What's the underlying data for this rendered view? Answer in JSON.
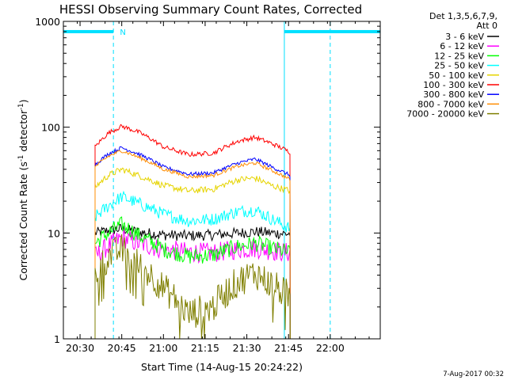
{
  "chart_data": {
    "type": "line",
    "title": "HESSI Observing Summary Count Rates, Corrected",
    "xlabel": "Start Time (14-Aug-15 20:24:22)",
    "ylabel_prefix": "Corrected Count Rate (s",
    "ylabel_sup1": "-1",
    "ylabel_mid": " detector",
    "ylabel_sup2": "-1",
    "ylabel_suffix": ")",
    "y_scale": "log",
    "ylim": [
      1,
      1000
    ],
    "xlim_minutes": [
      20.4,
      22.3
    ],
    "x_ticks": [
      {
        "label": "20:30",
        "t": 20.5
      },
      {
        "label": "20:45",
        "t": 20.75
      },
      {
        "label": "21:00",
        "t": 21.0
      },
      {
        "label": "21:15",
        "t": 21.25
      },
      {
        "label": "21:30",
        "t": 21.5
      },
      {
        "label": "21:45",
        "t": 21.75
      },
      {
        "label": "22:00",
        "t": 22.0
      }
    ],
    "y_ticks": [
      {
        "label": "1",
        "v": 1
      },
      {
        "label": "10",
        "v": 10
      },
      {
        "label": "100",
        "v": 100
      },
      {
        "label": "1000",
        "v": 1000
      }
    ],
    "legend_header": [
      "Det 1,3,5,6,7,9,",
      "Att 0"
    ],
    "data_window": [
      20.59,
      21.76
    ],
    "series": [
      {
        "name": "3 - 6 keV",
        "color": "#000000",
        "x": [
          20.59,
          20.67,
          20.75,
          20.85,
          21.0,
          21.15,
          21.3,
          21.45,
          21.55,
          21.65,
          21.76
        ],
        "y": [
          10,
          10.5,
          11,
          10.2,
          9.6,
          9.4,
          9.6,
          10,
          10.3,
          10,
          9.8
        ]
      },
      {
        "name": "6 - 12 keV",
        "color": "#ff00ff",
        "x": [
          20.59,
          20.67,
          20.75,
          20.85,
          21.0,
          21.15,
          21.3,
          21.45,
          21.55,
          21.65,
          21.76
        ],
        "y": [
          6,
          7.5,
          9,
          8,
          7,
          6.6,
          6.5,
          7,
          7.2,
          6.8,
          6.5
        ]
      },
      {
        "name": "12 - 25 keV",
        "color": "#00ff00",
        "x": [
          20.59,
          20.67,
          20.75,
          20.85,
          21.0,
          21.15,
          21.3,
          21.45,
          21.55,
          21.65,
          21.76
        ],
        "y": [
          8,
          10,
          12,
          9.5,
          7,
          6,
          6.2,
          7.5,
          8,
          7.2,
          6.5
        ]
      },
      {
        "name": "25 - 50 keV",
        "color": "#00ffff",
        "x": [
          20.59,
          20.67,
          20.75,
          20.85,
          21.0,
          21.15,
          21.3,
          21.45,
          21.55,
          21.65,
          21.76
        ],
        "y": [
          14,
          18,
          22,
          19,
          15,
          13,
          13.5,
          16,
          16.5,
          13.5,
          11
        ]
      },
      {
        "name": "50 - 100 keV",
        "color": "#e6d400",
        "x": [
          20.59,
          20.67,
          20.75,
          20.85,
          21.0,
          21.15,
          21.3,
          21.45,
          21.55,
          21.65,
          21.76
        ],
        "y": [
          27,
          35,
          40,
          35,
          28,
          25,
          26,
          32,
          33,
          28,
          25
        ]
      },
      {
        "name": "100 - 300 keV",
        "color": "#ff0000",
        "x": [
          20.59,
          20.67,
          20.75,
          20.85,
          21.0,
          21.15,
          21.3,
          21.45,
          21.55,
          21.65,
          21.76
        ],
        "y": [
          65,
          88,
          102,
          90,
          65,
          55,
          57,
          74,
          80,
          70,
          58
        ]
      },
      {
        "name": "300 - 800 keV",
        "color": "#0000ff",
        "x": [
          20.59,
          20.67,
          20.75,
          20.85,
          21.0,
          21.15,
          21.3,
          21.45,
          21.55,
          21.65,
          21.76
        ],
        "y": [
          44,
          56,
          64,
          56,
          42,
          36,
          37,
          46,
          50,
          42,
          35
        ]
      },
      {
        "name": "800 - 7000 keV",
        "color": "#ff8c00",
        "x": [
          20.59,
          20.67,
          20.75,
          20.85,
          21.0,
          21.15,
          21.3,
          21.45,
          21.55,
          21.65,
          21.76
        ],
        "y": [
          42,
          53,
          60,
          52,
          40,
          34,
          35,
          43,
          46,
          39,
          32
        ]
      },
      {
        "name": "7000 - 20000 keV",
        "color": "#7f7f00",
        "x": [
          20.59,
          20.67,
          20.75,
          20.85,
          21.0,
          21.15,
          21.3,
          21.45,
          21.55,
          21.65,
          21.76
        ],
        "y": [
          4,
          6,
          7,
          5,
          3,
          1.7,
          2,
          3.5,
          4.2,
          3.2,
          2.5
        ]
      }
    ],
    "orbit_flags": {
      "color": "#00e0ff",
      "bar_level": 800,
      "bars": [
        [
          20.4,
          20.7
        ],
        [
          21.725,
          22.3
        ]
      ],
      "solid_lines": [
        20.4,
        21.725
      ],
      "dashed_lines": [
        20.7,
        22.0
      ],
      "flag_label": "N",
      "flag_label_t": 20.72
    },
    "footer_date": "7-Aug-2017 00:32"
  }
}
